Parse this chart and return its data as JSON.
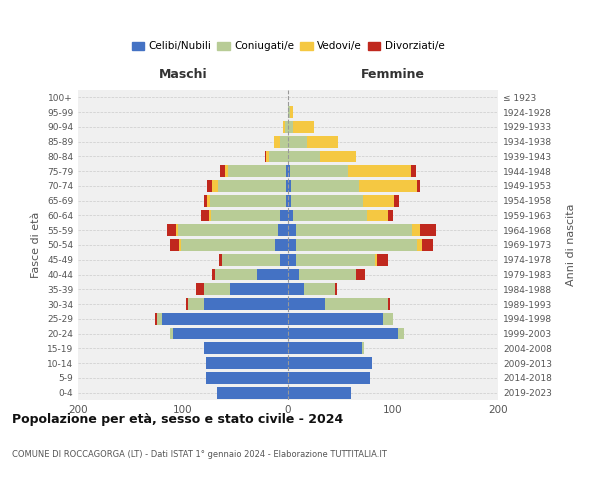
{
  "age_groups": [
    "0-4",
    "5-9",
    "10-14",
    "15-19",
    "20-24",
    "25-29",
    "30-34",
    "35-39",
    "40-44",
    "45-49",
    "50-54",
    "55-59",
    "60-64",
    "65-69",
    "70-74",
    "75-79",
    "80-84",
    "85-89",
    "90-94",
    "95-99",
    "100+"
  ],
  "birth_years": [
    "2019-2023",
    "2014-2018",
    "2009-2013",
    "2004-2008",
    "1999-2003",
    "1994-1998",
    "1989-1993",
    "1984-1988",
    "1979-1983",
    "1974-1978",
    "1969-1973",
    "1964-1968",
    "1959-1963",
    "1954-1958",
    "1949-1953",
    "1944-1948",
    "1939-1943",
    "1934-1938",
    "1929-1933",
    "1924-1928",
    "≤ 1923"
  ],
  "males": {
    "celibi": [
      68,
      78,
      78,
      80,
      110,
      120,
      80,
      55,
      30,
      8,
      12,
      10,
      8,
      2,
      2,
      2,
      0,
      0,
      0,
      0,
      0
    ],
    "coniugati": [
      0,
      0,
      0,
      0,
      2,
      5,
      15,
      25,
      40,
      55,
      90,
      95,
      65,
      72,
      65,
      55,
      18,
      8,
      3,
      0,
      0
    ],
    "vedovi": [
      0,
      0,
      0,
      0,
      0,
      0,
      0,
      0,
      0,
      0,
      2,
      2,
      2,
      3,
      5,
      3,
      3,
      5,
      2,
      0,
      0
    ],
    "divorziati": [
      0,
      0,
      0,
      0,
      0,
      2,
      2,
      8,
      2,
      3,
      8,
      8,
      8,
      3,
      5,
      5,
      1,
      0,
      0,
      0,
      0
    ]
  },
  "females": {
    "nubili": [
      60,
      78,
      80,
      70,
      105,
      90,
      35,
      15,
      10,
      8,
      8,
      8,
      5,
      3,
      3,
      2,
      0,
      0,
      0,
      0,
      0
    ],
    "coniugate": [
      0,
      0,
      0,
      2,
      5,
      10,
      60,
      30,
      55,
      75,
      115,
      110,
      70,
      68,
      65,
      55,
      30,
      18,
      5,
      2,
      0
    ],
    "vedove": [
      0,
      0,
      0,
      0,
      0,
      0,
      0,
      0,
      0,
      2,
      5,
      8,
      20,
      30,
      55,
      60,
      35,
      30,
      20,
      3,
      0
    ],
    "divorziate": [
      0,
      0,
      0,
      0,
      0,
      0,
      2,
      2,
      8,
      10,
      10,
      15,
      5,
      5,
      3,
      5,
      0,
      0,
      0,
      0,
      0
    ]
  },
  "colors": {
    "celibi_nubili": "#4472c4",
    "coniugati": "#b8cc96",
    "vedovi": "#f5c842",
    "divorziati": "#c0281e"
  },
  "xlim": 200,
  "title": "Popolazione per età, sesso e stato civile - 2024",
  "subtitle": "COMUNE DI ROCCAGORGA (LT) - Dati ISTAT 1° gennaio 2024 - Elaborazione TUTTITALIA.IT",
  "xlabel_left": "Maschi",
  "xlabel_right": "Femmine",
  "ylabel_left": "Fasce di età",
  "ylabel_right": "Anni di nascita",
  "legend_labels": [
    "Celibi/Nubili",
    "Coniugati/e",
    "Vedovi/e",
    "Divorziati/e"
  ],
  "bg_color": "#ffffff",
  "plot_bg_color": "#f0f0f0"
}
